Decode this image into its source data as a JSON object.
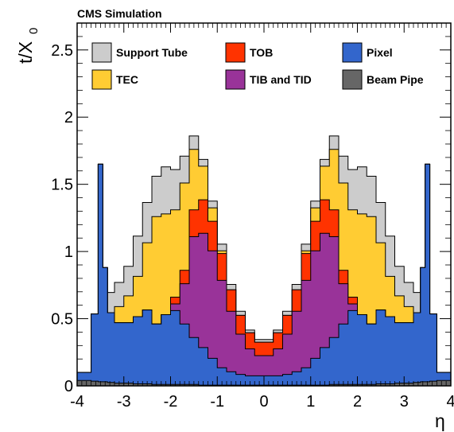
{
  "header": {
    "label": "CMS Simulation"
  },
  "chart_data": {
    "type": "area",
    "stacked": true,
    "xlabel": "η",
    "ylabel_main": "t/X",
    "ylabel_sub": "0",
    "xlim": [
      -4,
      4
    ],
    "ylim": [
      0,
      2.7
    ],
    "xticks": [
      "-4",
      "-3",
      "-2",
      "-1",
      "0",
      "1",
      "2",
      "3",
      "4"
    ],
    "yticks": [
      "0",
      "0.5",
      "1",
      "1.5",
      "2",
      "2.5"
    ],
    "legend_position": "top",
    "x": [
      -3.8,
      -3.6,
      -3.5,
      -3.4,
      -3.3,
      -3.1,
      -2.9,
      -2.7,
      -2.5,
      -2.3,
      -2.1,
      -1.9,
      -1.7,
      -1.5,
      -1.3,
      -1.1,
      -0.9,
      -0.7,
      -0.5,
      -0.3,
      -0.1,
      0.1,
      0.3,
      0.5,
      0.7,
      0.9,
      1.1,
      1.3,
      1.5,
      1.7,
      1.9,
      2.1,
      2.3,
      2.5,
      2.7,
      2.9,
      3.1,
      3.3,
      3.4,
      3.5,
      3.6,
      3.8
    ],
    "series": [
      {
        "name": "Beam Pipe",
        "color": "#666666",
        "values": [
          0.04,
          0.035,
          0.03,
          0.03,
          0.025,
          0.02,
          0.02,
          0.015,
          0.015,
          0.01,
          0.01,
          0.01,
          0.01,
          0.01,
          0.005,
          0.005,
          0.005,
          0.005,
          0.005,
          0.005,
          0.005,
          0.005,
          0.005,
          0.005,
          0.005,
          0.005,
          0.005,
          0.005,
          0.01,
          0.01,
          0.01,
          0.01,
          0.01,
          0.015,
          0.015,
          0.02,
          0.02,
          0.025,
          0.03,
          0.03,
          0.035,
          0.04
        ]
      },
      {
        "name": "Pixel",
        "color": "#3366cc",
        "values": [
          0.06,
          0.5,
          1.62,
          0.85,
          0.52,
          0.45,
          0.45,
          0.5,
          0.55,
          0.45,
          0.52,
          0.55,
          0.45,
          0.35,
          0.28,
          0.2,
          0.13,
          0.1,
          0.08,
          0.07,
          0.07,
          0.07,
          0.07,
          0.08,
          0.1,
          0.13,
          0.2,
          0.28,
          0.35,
          0.45,
          0.55,
          0.52,
          0.45,
          0.55,
          0.5,
          0.45,
          0.45,
          0.52,
          0.85,
          1.62,
          0.5,
          0.06
        ]
      },
      {
        "name": "TIB and TID",
        "color": "#993399",
        "values": [
          0,
          0,
          0,
          0,
          0,
          0,
          0,
          0,
          0,
          0,
          0,
          0.05,
          0.3,
          0.75,
          0.85,
          0.8,
          0.65,
          0.45,
          0.3,
          0.2,
          0.15,
          0.15,
          0.2,
          0.3,
          0.45,
          0.65,
          0.8,
          0.85,
          0.75,
          0.3,
          0.05,
          0,
          0,
          0,
          0,
          0,
          0,
          0,
          0,
          0,
          0,
          0
        ]
      },
      {
        "name": "TOB",
        "color": "#ff3300",
        "values": [
          0,
          0,
          0,
          0,
          0,
          0,
          0,
          0,
          0,
          0,
          0,
          0.05,
          0.1,
          0.2,
          0.25,
          0.22,
          0.2,
          0.16,
          0.14,
          0.12,
          0.1,
          0.1,
          0.12,
          0.14,
          0.16,
          0.2,
          0.22,
          0.25,
          0.2,
          0.1,
          0.05,
          0,
          0,
          0,
          0,
          0,
          0,
          0,
          0,
          0,
          0,
          0
        ]
      },
      {
        "name": "TEC",
        "color": "#ffcc33",
        "values": [
          0,
          0,
          0,
          0,
          0,
          0.12,
          0.2,
          0.3,
          0.5,
          0.8,
          0.75,
          0.65,
          0.65,
          0.45,
          0.25,
          0.1,
          0.02,
          0,
          0,
          0,
          0,
          0,
          0,
          0,
          0,
          0.02,
          0.1,
          0.25,
          0.45,
          0.65,
          0.65,
          0.75,
          0.8,
          0.5,
          0.3,
          0.2,
          0.12,
          0,
          0,
          0,
          0,
          0
        ]
      },
      {
        "name": "Support Tube",
        "color": "#cccccc",
        "values": [
          0,
          0,
          0,
          0,
          0.15,
          0.18,
          0.22,
          0.3,
          0.3,
          0.3,
          0.35,
          0.3,
          0.2,
          0.1,
          0.05,
          0.05,
          0.05,
          0.04,
          0.03,
          0.02,
          0.02,
          0.02,
          0.02,
          0.03,
          0.04,
          0.05,
          0.05,
          0.05,
          0.1,
          0.2,
          0.3,
          0.35,
          0.3,
          0.3,
          0.3,
          0.22,
          0.18,
          0.15,
          0,
          0,
          0,
          0
        ]
      }
    ]
  }
}
